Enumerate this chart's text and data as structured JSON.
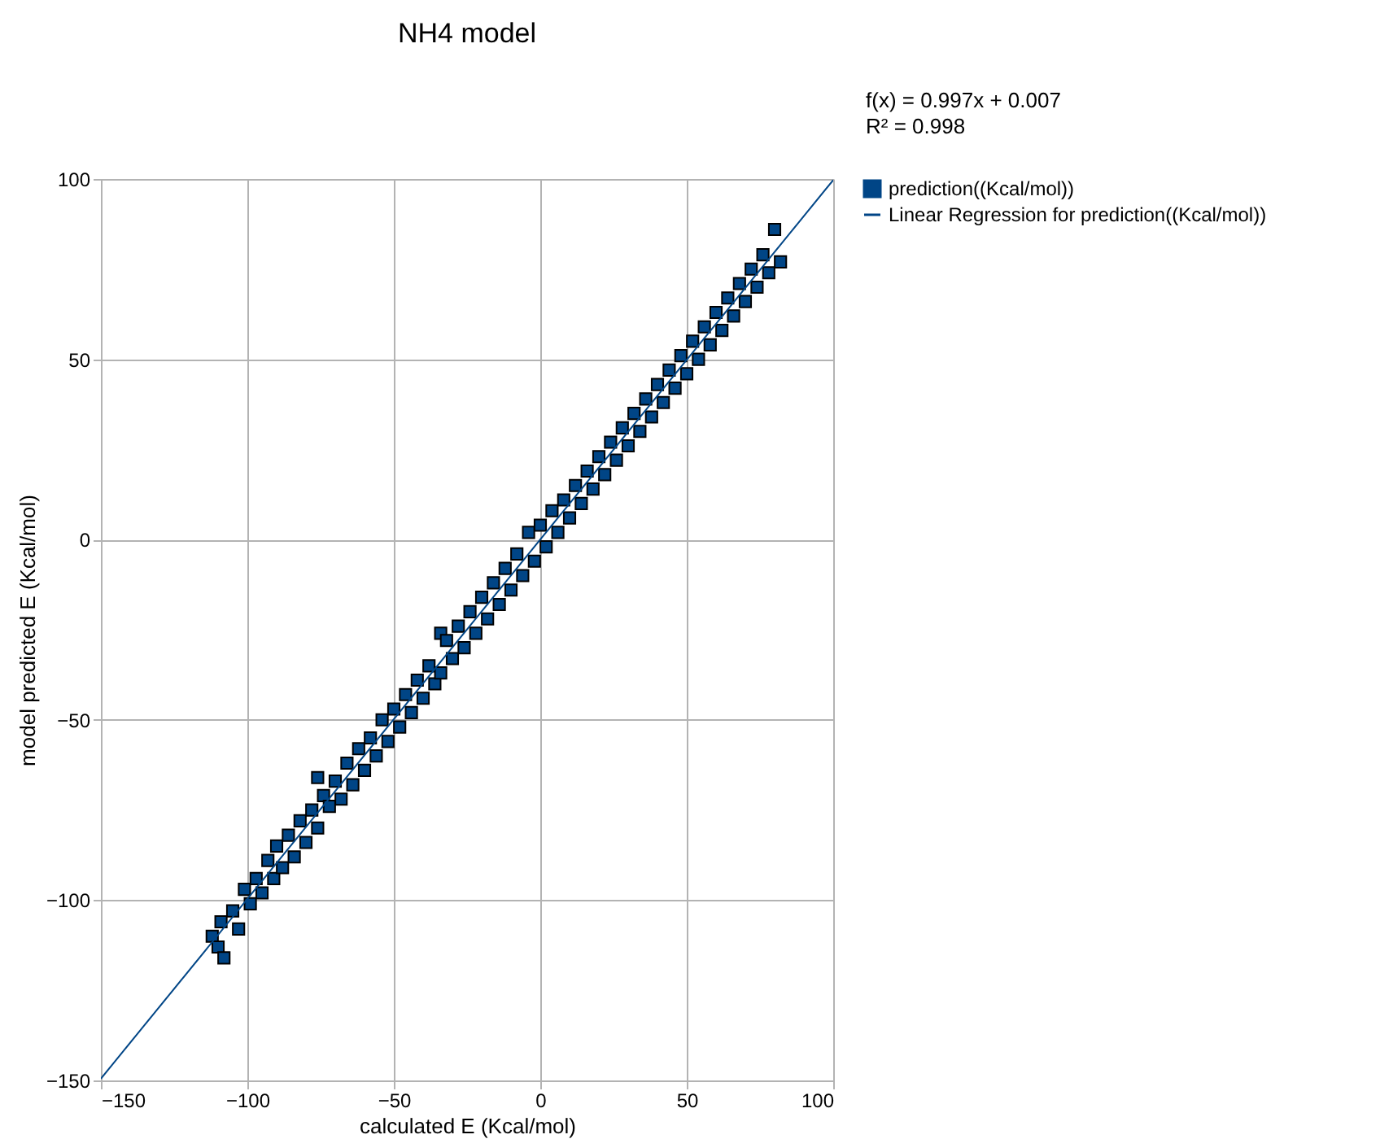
{
  "chart_data": {
    "type": "scatter",
    "title": "NH4 model",
    "xlabel": "calculated E (Kcal/mol)",
    "ylabel": "model predicted E (Kcal/mol)",
    "xlim": [
      -150,
      100
    ],
    "ylim": [
      -150,
      100
    ],
    "xticks": [
      -150,
      -100,
      -50,
      0,
      50,
      100
    ],
    "yticks": [
      -150,
      -100,
      -50,
      0,
      50,
      100
    ],
    "grid": true,
    "legend": "right",
    "annotations": [
      "f(x) = 0.997x + 0.007",
      "R² = 0.998"
    ],
    "series": [
      {
        "name": "prediction((Kcal/mol))",
        "color": "#004586",
        "marker": "square",
        "x": [
          -112,
          -110,
          -109,
          -108,
          -105,
          -103,
          -101,
          -99,
          -97,
          -95,
          -93,
          -91,
          -90,
          -88,
          -86,
          -84,
          -82,
          -80,
          -78,
          -76,
          -76,
          -74,
          -72,
          -70,
          -68,
          -66,
          -64,
          -62,
          -60,
          -58,
          -56,
          -54,
          -52,
          -50,
          -48,
          -46,
          -44,
          -42,
          -40,
          -38,
          -36,
          -34,
          -34,
          -32,
          -30,
          -28,
          -26,
          -24,
          -22,
          -20,
          -18,
          -16,
          -14,
          -12,
          -10,
          -8,
          -6,
          -4,
          -2,
          0,
          2,
          4,
          6,
          8,
          10,
          12,
          14,
          16,
          18,
          20,
          22,
          24,
          26,
          28,
          30,
          32,
          34,
          36,
          38,
          40,
          42,
          44,
          46,
          48,
          50,
          52,
          54,
          56,
          58,
          60,
          62,
          64,
          66,
          68,
          70,
          72,
          74,
          76,
          78,
          80,
          82
        ],
        "values": [
          -110,
          -113,
          -106,
          -116,
          -103,
          -108,
          -97,
          -101,
          -94,
          -98,
          -89,
          -94,
          -85,
          -91,
          -82,
          -88,
          -78,
          -84,
          -75,
          -80,
          -66,
          -71,
          -74,
          -67,
          -72,
          -62,
          -68,
          -58,
          -64,
          -55,
          -60,
          -50,
          -56,
          -47,
          -52,
          -43,
          -48,
          -39,
          -44,
          -35,
          -40,
          -26,
          -37,
          -28,
          -33,
          -24,
          -30,
          -20,
          -26,
          -16,
          -22,
          -12,
          -18,
          -8,
          -14,
          -4,
          -10,
          2,
          -6,
          4,
          -2,
          8,
          2,
          11,
          6,
          15,
          10,
          19,
          14,
          23,
          18,
          27,
          22,
          31,
          26,
          35,
          30,
          39,
          34,
          43,
          38,
          47,
          42,
          51,
          46,
          55,
          50,
          59,
          54,
          63,
          58,
          67,
          62,
          71,
          66,
          75,
          70,
          79,
          74,
          86,
          77
        ]
      },
      {
        "name": "Linear Regression for prediction((Kcal/mol))",
        "color": "#004586",
        "type": "line",
        "marker": "none",
        "line_style": "solid",
        "x": [
          -150,
          100
        ],
        "values": [
          -149.5,
          99.7
        ]
      }
    ]
  }
}
